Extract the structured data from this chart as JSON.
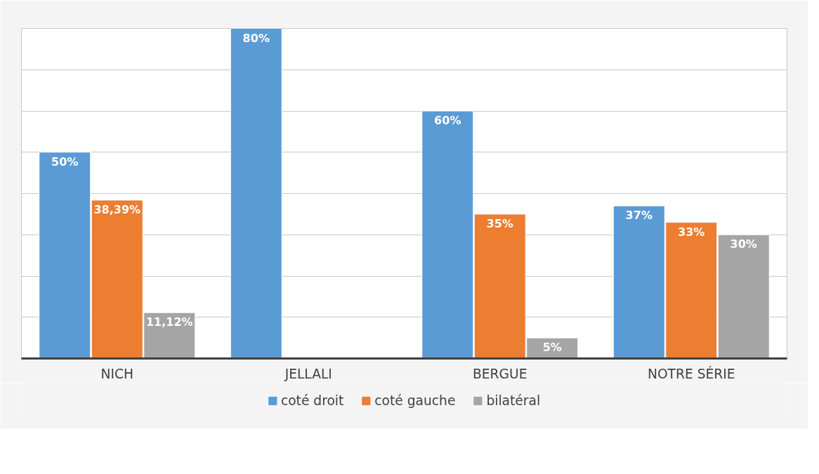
{
  "chart_data": {
    "type": "bar",
    "categories": [
      "NICH",
      "JELLALI",
      "BERGUE",
      "NOTRE SÉRIE"
    ],
    "series": [
      {
        "name": "coté droit",
        "color": "#5b9bd5",
        "values": [
          50,
          80,
          60,
          37
        ],
        "value_labels": [
          "50%",
          "80%",
          "60%",
          "37%"
        ]
      },
      {
        "name": "coté gauche",
        "color": "#ed7d31",
        "values": [
          38.39,
          null,
          35,
          33
        ],
        "value_labels": [
          "38,39%",
          null,
          "35%",
          "33%"
        ]
      },
      {
        "name": "bilatéral",
        "color": "#a5a5a5",
        "values": [
          11.12,
          null,
          5,
          30
        ],
        "value_labels": [
          "11,12%",
          null,
          "5%",
          "30%"
        ]
      }
    ],
    "ylim": [
      0,
      80
    ],
    "yticks": [
      {
        "value": 0,
        "label": null
      },
      {
        "value": 10,
        "label": null
      },
      {
        "value": 20,
        "label": null
      },
      {
        "value": 30,
        "label": null
      },
      {
        "value": 40,
        "label": null
      },
      {
        "value": 50,
        "label": null
      },
      {
        "value": 60,
        "label": null
      },
      {
        "value": 70,
        "label": null
      },
      {
        "value": 80,
        "label": null
      }
    ],
    "tick_labels": "x",
    "grid": "y",
    "legend": "bottom"
  }
}
